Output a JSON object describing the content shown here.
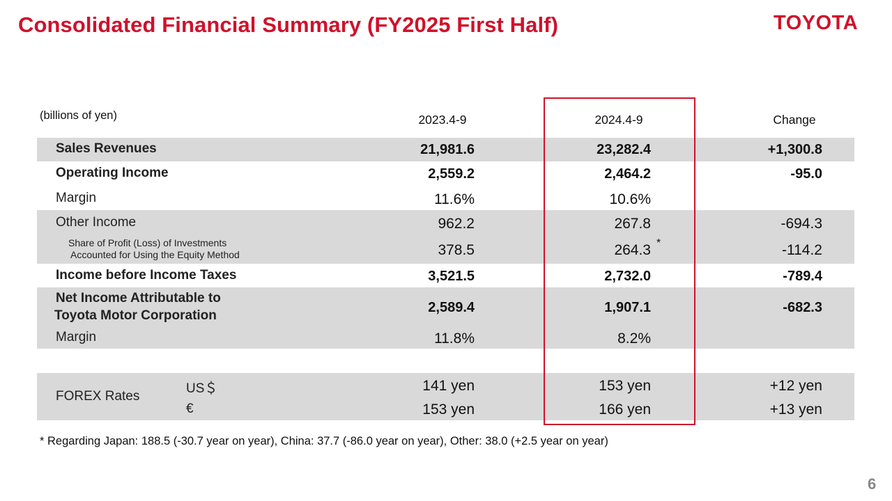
{
  "header": {
    "title": "Consolidated Financial Summary (FY2025 First Half)",
    "logo_text": "TOYOTA"
  },
  "table": {
    "unit": "(billions of yen)",
    "columns": [
      "2023.4-9",
      "2024.4-9",
      "Change"
    ],
    "rows": [
      {
        "label": "Sales Revenues",
        "v1": "21,981.6",
        "v2": "23,282.4",
        "v3": "+1,300.8"
      },
      {
        "label": "Operating Income",
        "v1": "2,559.2",
        "v2": "2,464.2",
        "v3": "-95.0"
      },
      {
        "label": "Margin",
        "v1": "11.6%",
        "v2": "10.6%",
        "v3": ""
      },
      {
        "label": "Other Income",
        "v1": "962.2",
        "v2": "267.8",
        "v3": "-694.3"
      },
      {
        "label_line1": "Share of Profit (Loss) of Investments",
        "label_line2": "Accounted for Using the Equity Method",
        "v1": "378.5",
        "v2": "264.3",
        "v2_marker": "*",
        "v3": "-114.2"
      },
      {
        "label": "Income before Income Taxes",
        "v1": "3,521.5",
        "v2": "2,732.0",
        "v3": "-789.4"
      },
      {
        "label_line1": "Net Income Attributable to",
        "label_line2": "Toyota Motor Corporation",
        "v1": "2,589.4",
        "v2": "1,907.1",
        "v3": "-682.3"
      },
      {
        "label": "Margin",
        "v1": "11.8%",
        "v2": "8.2%",
        "v3": ""
      }
    ],
    "forex": {
      "label": "FOREX Rates",
      "usd": {
        "currency": "US＄",
        "v1": "141 yen",
        "v2": "153 yen",
        "v3": "+12 yen"
      },
      "eur": {
        "currency": "€",
        "v1": "153 yen",
        "v2": "166 yen",
        "v3": "+13 yen"
      }
    }
  },
  "footnote": "* Regarding Japan: 188.5 (-30.7 year on year), China: 37.7  (-86.0 year on year), Other: 38.0 (+2.5 year on year)",
  "page_number": "6",
  "colors": {
    "accent": "#d0112b",
    "row_shade": "#d9d9d9"
  }
}
